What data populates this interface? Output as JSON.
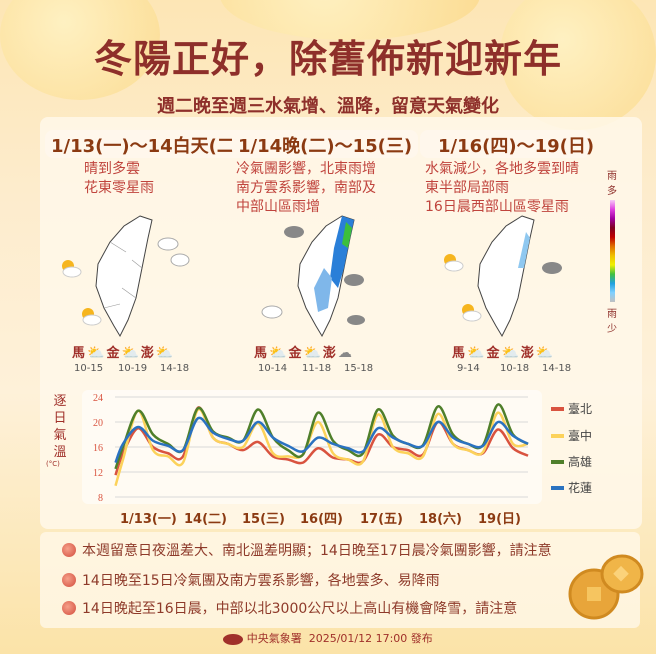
{
  "header": {
    "title": "冬陽正好，除舊佈新迎新年",
    "subtitle": "週二晚至週三水氣增、溫降，留意天氣變化"
  },
  "panels": [
    {
      "period": "1/13(一)～14白天(二)",
      "desc": [
        "晴到多雲",
        "花東零星雨"
      ],
      "islands": [
        {
          "name": "馬",
          "temp": "10-15",
          "icon": "partly-sunny-icon"
        },
        {
          "name": "金",
          "temp": "10-19",
          "icon": "partly-sunny-icon"
        },
        {
          "name": "澎",
          "temp": "14-18",
          "icon": "partly-sunny-icon"
        }
      ]
    },
    {
      "period": "1/14晚(二)～15(三)",
      "desc": [
        "冷氣團影響，北東雨增",
        "南方雲系影響，南部及",
        "中部山區雨增"
      ],
      "islands": [
        {
          "name": "馬",
          "temp": "10-14",
          "icon": "partly-sunny-icon"
        },
        {
          "name": "金",
          "temp": "11-18",
          "icon": "partly-sunny-icon"
        },
        {
          "name": "澎",
          "temp": "15-18",
          "icon": "cloudy-icon"
        }
      ]
    },
    {
      "period": "1/16(四)～19(日)",
      "desc": [
        "水氣減少，各地多雲到晴",
        "東半部局部雨",
        "16日晨西部山區零星雨"
      ],
      "islands": [
        {
          "name": "馬",
          "temp": "9-14",
          "icon": "partly-sunny-icon"
        },
        {
          "name": "金",
          "temp": "10-18",
          "icon": "partly-sunny-icon"
        },
        {
          "name": "澎",
          "temp": "14-18",
          "icon": "partly-sunny-icon"
        }
      ]
    }
  ],
  "rain_legend": {
    "top": [
      "雨",
      "多"
    ],
    "bottom": [
      "雨",
      "少"
    ]
  },
  "chart_data": {
    "type": "line",
    "ylabel": [
      "逐",
      "日",
      "氣",
      "溫"
    ],
    "unit": "(°C)",
    "ylim": [
      8,
      24
    ],
    "yticks": [
      "24",
      "20",
      "16",
      "12",
      "8"
    ],
    "grid": true,
    "legend_position": "right",
    "xtick_labels": [
      "1/13(一)",
      "14(二)",
      "15(三)",
      "16(四)",
      "17(五)",
      "18(六)",
      "19(日)"
    ],
    "x": [
      "1/13 03:00",
      "1/13 06:00",
      "1/13 12:00",
      "1/13 18:00",
      "1/14 00:00",
      "1/14 06:00",
      "1/14 12:00",
      "1/14 18:00",
      "1/15 00:00",
      "1/15 06:00",
      "1/15 12:00",
      "1/15 18:00",
      "1/16 00:00",
      "1/16 06:00",
      "1/16 12:00",
      "1/16 18:00",
      "1/17 00:00",
      "1/17 06:00",
      "1/17 12:00",
      "1/17 18:00",
      "1/18 00:00",
      "1/18 06:00",
      "1/18 12:00",
      "1/18 18:00",
      "1/19 00:00",
      "1/19 06:00",
      "1/19 12:00",
      "1/19 18:00",
      "1/20 00:00"
    ],
    "series": [
      {
        "name": "臺北",
        "color": "#d9533f",
        "values": [
          11.5,
          15,
          19,
          16,
          15,
          14.5,
          22.3,
          17.5,
          16.5,
          15.5,
          16.8,
          14.5,
          14,
          13.5,
          15.8,
          14.3,
          14,
          13.7,
          18,
          16,
          15.5,
          14.8,
          20,
          16.5,
          15.5,
          15,
          18.8,
          15.8,
          14.6
        ]
      },
      {
        "name": "臺中",
        "color": "#fcd25a",
        "values": [
          9.8,
          14,
          21.8,
          15.5,
          14.5,
          13.5,
          22,
          17.5,
          16.5,
          16,
          19.8,
          15,
          14.5,
          14.8,
          20,
          15,
          14,
          13.7,
          21.2,
          16,
          15,
          14.5,
          21.3,
          16.5,
          15.5,
          15.2,
          21.5,
          16.5,
          16.5
        ]
      },
      {
        "name": "高雄",
        "color": "#4f7f2a",
        "values": [
          12.5,
          16,
          21.8,
          18,
          16.5,
          15.5,
          22.2,
          18.5,
          17.5,
          17,
          22,
          17.5,
          15.5,
          14.8,
          21.5,
          17,
          15.5,
          15,
          22,
          17.8,
          16.5,
          16.3,
          22.5,
          18,
          16.5,
          16.3,
          22.8,
          18,
          16.5
        ]
      },
      {
        "name": "花蓮",
        "color": "#2b72c0",
        "values": [
          13.5,
          16.5,
          19.2,
          17,
          16.2,
          15.5,
          20.6,
          18.3,
          17.3,
          17,
          20,
          17.5,
          16.2,
          15.3,
          17.5,
          16.5,
          15.8,
          15.3,
          19,
          17.5,
          16.5,
          16.2,
          20,
          17.5,
          16.5,
          16.2,
          20,
          17.8,
          16.5
        ]
      }
    ]
  },
  "notes": [
    "本週留意日夜溫差大、南北溫差明顯；14日晚至17日晨冷氣團影響，請注意",
    "14日晚至15日冷氣團及南方雲系影響，各地雲多、易降雨",
    "14日晚起至16日晨，中部以北3000公尺以上高山有機會降雪，請注意"
  ],
  "footer": {
    "agency": "中央氣象署",
    "issued": "2025/01/12 17:00 發布"
  }
}
